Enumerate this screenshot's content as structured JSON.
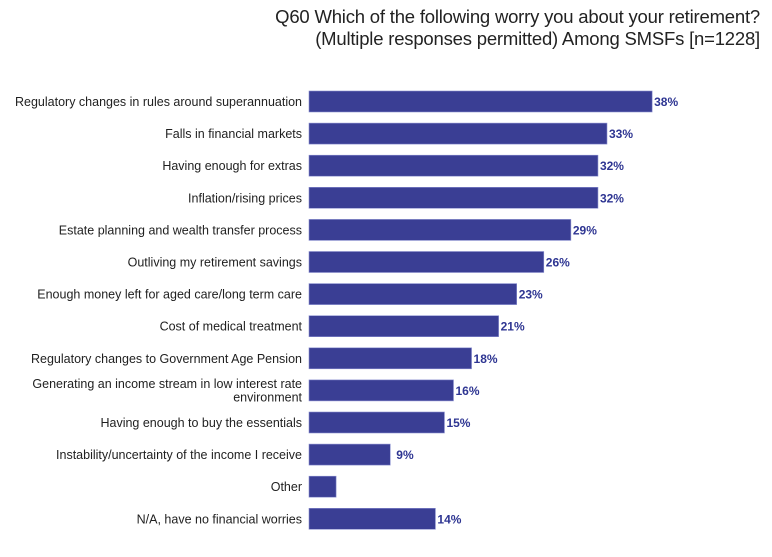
{
  "chart_data": {
    "type": "bar",
    "orientation": "horizontal",
    "title": "Q60 Which of the following worry you about your retirement?",
    "subtitle": "(Multiple responses permitted) Among SMSFs [n=1228]",
    "xlabel": "",
    "ylabel": "",
    "xlim": [
      0,
      40
    ],
    "grid": false,
    "legend": "none",
    "bar_color": "#3a3e94",
    "label_color": "#2e3592",
    "categories": [
      "Regulatory changes in rules around superannuation",
      "Falls in financial markets",
      "Having enough for extras",
      "Inflation/rising prices",
      "Estate planning and wealth transfer process",
      "Outliving my retirement savings",
      "Enough money left for aged care/long term care",
      "Cost of medical treatment",
      "Regulatory changes to Government Age Pension",
      "Generating an income stream in low interest rate environment",
      "Having enough to buy the essentials",
      "Instability/uncertainty of the income I receive",
      "Other",
      "N/A, have no financial worries"
    ],
    "category_lines": [
      [
        "Regulatory changes in rules around superannuation"
      ],
      [
        "Falls in financial markets"
      ],
      [
        "Having enough for extras"
      ],
      [
        "Inflation/rising prices"
      ],
      [
        "Estate planning and wealth transfer process"
      ],
      [
        "Outliving my retirement savings"
      ],
      [
        "Enough money left for aged care/long term care"
      ],
      [
        "Cost of medical treatment"
      ],
      [
        "Regulatory changes to Government Age Pension"
      ],
      [
        "Generating an income stream in low interest rate",
        "environment"
      ],
      [
        "Having enough to buy the essentials"
      ],
      [
        "Instability/uncertainty of the income I receive"
      ],
      [
        "Other"
      ],
      [
        "N/A, have no financial worries"
      ]
    ],
    "values": [
      38,
      33,
      32,
      32,
      29,
      26,
      23,
      21,
      18,
      16,
      15,
      9,
      3,
      14
    ],
    "value_labels": [
      "38%",
      "33%",
      "32%",
      "32%",
      "29%",
      "26%",
      "23%",
      "21%",
      "18%",
      "16%",
      "15%",
      "9%",
      "",
      "14%"
    ]
  }
}
